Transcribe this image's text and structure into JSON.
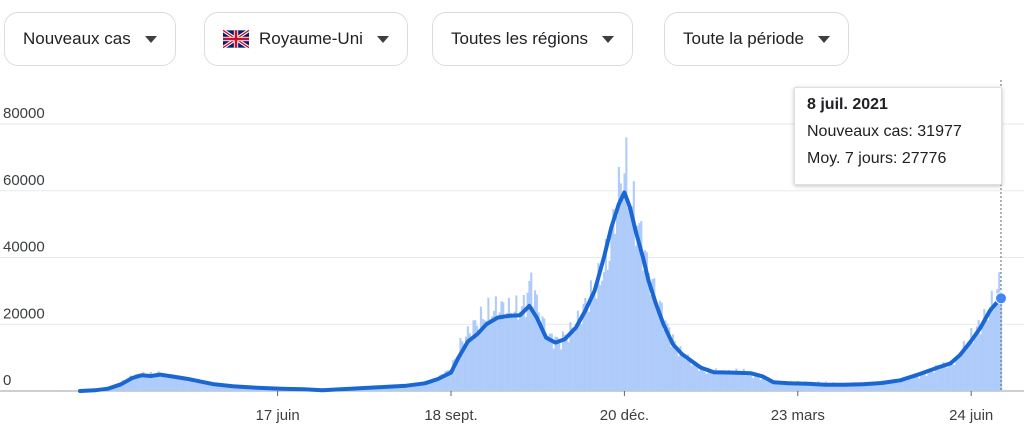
{
  "filters": {
    "metric": "Nouveaux cas",
    "country": "Royaume-Uni",
    "region": "Toutes les régions",
    "period": "Toute la période"
  },
  "colors": {
    "bars": "#aecbfa",
    "line": "#1a67d2",
    "grid": "#e8eaed",
    "axis": "#5f6368",
    "marker": "#4285f4"
  },
  "tooltip": {
    "date": "8 juil. 2021",
    "cases_label": "Nouveaux cas: 31977",
    "avg_label": "Moy. 7 jours: 27776"
  },
  "chart_data": {
    "type": "bar",
    "title": "",
    "xlabel": "",
    "ylabel": "",
    "ylim": [
      0,
      80000
    ],
    "y_ticks": [
      "0",
      "20000",
      "40000",
      "60000",
      "80000"
    ],
    "x_tick_labels": [
      "17 juin",
      "18 sept.",
      "20 déc.",
      "23 mars",
      "24 juin"
    ],
    "x_tick_days": [
      106,
      199,
      292,
      385,
      478
    ],
    "x_range_days": [
      0,
      494
    ],
    "grid": true,
    "highlight": {
      "day": 494,
      "label": "8 juil. 2021",
      "value": 27776
    },
    "series": [
      {
        "name": "Nouveaux cas",
        "type": "bar",
        "points": [
          [
            0,
            0
          ],
          [
            8,
            300
          ],
          [
            15,
            800
          ],
          [
            22,
            2400
          ],
          [
            28,
            4300
          ],
          [
            32,
            5000
          ],
          [
            37,
            4700
          ],
          [
            42,
            5100
          ],
          [
            48,
            4600
          ],
          [
            55,
            3900
          ],
          [
            62,
            3100
          ],
          [
            70,
            2000
          ],
          [
            80,
            1200
          ],
          [
            95,
            800
          ],
          [
            106,
            600
          ],
          [
            120,
            500
          ],
          [
            130,
            300
          ],
          [
            145,
            800
          ],
          [
            160,
            1300
          ],
          [
            175,
            1800
          ],
          [
            185,
            2500
          ],
          [
            192,
            4000
          ],
          [
            199,
            6600
          ],
          [
            205,
            15000
          ],
          [
            212,
            20000
          ],
          [
            218,
            23000
          ],
          [
            225,
            25000
          ],
          [
            232,
            24000
          ],
          [
            238,
            25000
          ],
          [
            242,
            33000
          ],
          [
            247,
            22000
          ],
          [
            252,
            16000
          ],
          [
            257,
            15000
          ],
          [
            262,
            17000
          ],
          [
            268,
            22000
          ],
          [
            272,
            27000
          ],
          [
            278,
            32000
          ],
          [
            284,
            42000
          ],
          [
            287,
            53000
          ],
          [
            290,
            62000
          ],
          [
            292,
            68000
          ],
          [
            295,
            57000
          ],
          [
            298,
            52000
          ],
          [
            302,
            44000
          ],
          [
            305,
            35000
          ],
          [
            310,
            27000
          ],
          [
            315,
            19000
          ],
          [
            320,
            13000
          ],
          [
            325,
            10000
          ],
          [
            330,
            8000
          ],
          [
            335,
            6000
          ],
          [
            345,
            5500
          ],
          [
            355,
            5800
          ],
          [
            365,
            3900
          ],
          [
            372,
            2500
          ],
          [
            380,
            2700
          ],
          [
            390,
            2600
          ],
          [
            400,
            2400
          ],
          [
            410,
            2100
          ],
          [
            420,
            2300
          ],
          [
            430,
            2700
          ],
          [
            440,
            3100
          ],
          [
            450,
            4500
          ],
          [
            460,
            6800
          ],
          [
            470,
            9000
          ],
          [
            478,
            16000
          ],
          [
            483,
            20000
          ],
          [
            487,
            24000
          ],
          [
            490,
            27000
          ],
          [
            493,
            31000
          ],
          [
            494,
            31977
          ]
        ]
      },
      {
        "name": "Moy. 7 jours",
        "type": "line",
        "points": [
          [
            0,
            0
          ],
          [
            8,
            200
          ],
          [
            15,
            700
          ],
          [
            22,
            2000
          ],
          [
            28,
            3900
          ],
          [
            33,
            4700
          ],
          [
            38,
            4500
          ],
          [
            43,
            4900
          ],
          [
            50,
            4300
          ],
          [
            58,
            3600
          ],
          [
            65,
            2800
          ],
          [
            72,
            2000
          ],
          [
            82,
            1400
          ],
          [
            95,
            1000
          ],
          [
            108,
            700
          ],
          [
            120,
            500
          ],
          [
            130,
            200
          ],
          [
            145,
            700
          ],
          [
            160,
            1100
          ],
          [
            175,
            1600
          ],
          [
            185,
            2300
          ],
          [
            192,
            3600
          ],
          [
            199,
            5500
          ],
          [
            203,
            10000
          ],
          [
            208,
            14800
          ],
          [
            213,
            17000
          ],
          [
            218,
            20000
          ],
          [
            224,
            22000
          ],
          [
            230,
            22500
          ],
          [
            236,
            22700
          ],
          [
            241,
            25500
          ],
          [
            245,
            22000
          ],
          [
            250,
            16000
          ],
          [
            255,
            14500
          ],
          [
            260,
            15500
          ],
          [
            266,
            19000
          ],
          [
            271,
            24000
          ],
          [
            276,
            30000
          ],
          [
            281,
            40000
          ],
          [
            285,
            49000
          ],
          [
            289,
            56000
          ],
          [
            292,
            59500
          ],
          [
            295,
            55000
          ],
          [
            298,
            48000
          ],
          [
            302,
            40000
          ],
          [
            305,
            33000
          ],
          [
            309,
            26000
          ],
          [
            313,
            20000
          ],
          [
            318,
            14000
          ],
          [
            323,
            11000
          ],
          [
            328,
            9000
          ],
          [
            333,
            7000
          ],
          [
            340,
            5600
          ],
          [
            350,
            5500
          ],
          [
            360,
            5300
          ],
          [
            366,
            4400
          ],
          [
            372,
            2600
          ],
          [
            380,
            2300
          ],
          [
            390,
            2200
          ],
          [
            400,
            1900
          ],
          [
            410,
            1900
          ],
          [
            420,
            2000
          ],
          [
            430,
            2400
          ],
          [
            440,
            3200
          ],
          [
            450,
            5000
          ],
          [
            460,
            7000
          ],
          [
            467,
            8300
          ],
          [
            472,
            10800
          ],
          [
            478,
            15000
          ],
          [
            483,
            19000
          ],
          [
            488,
            24000
          ],
          [
            491,
            26000
          ],
          [
            494,
            27776
          ]
        ]
      }
    ]
  }
}
